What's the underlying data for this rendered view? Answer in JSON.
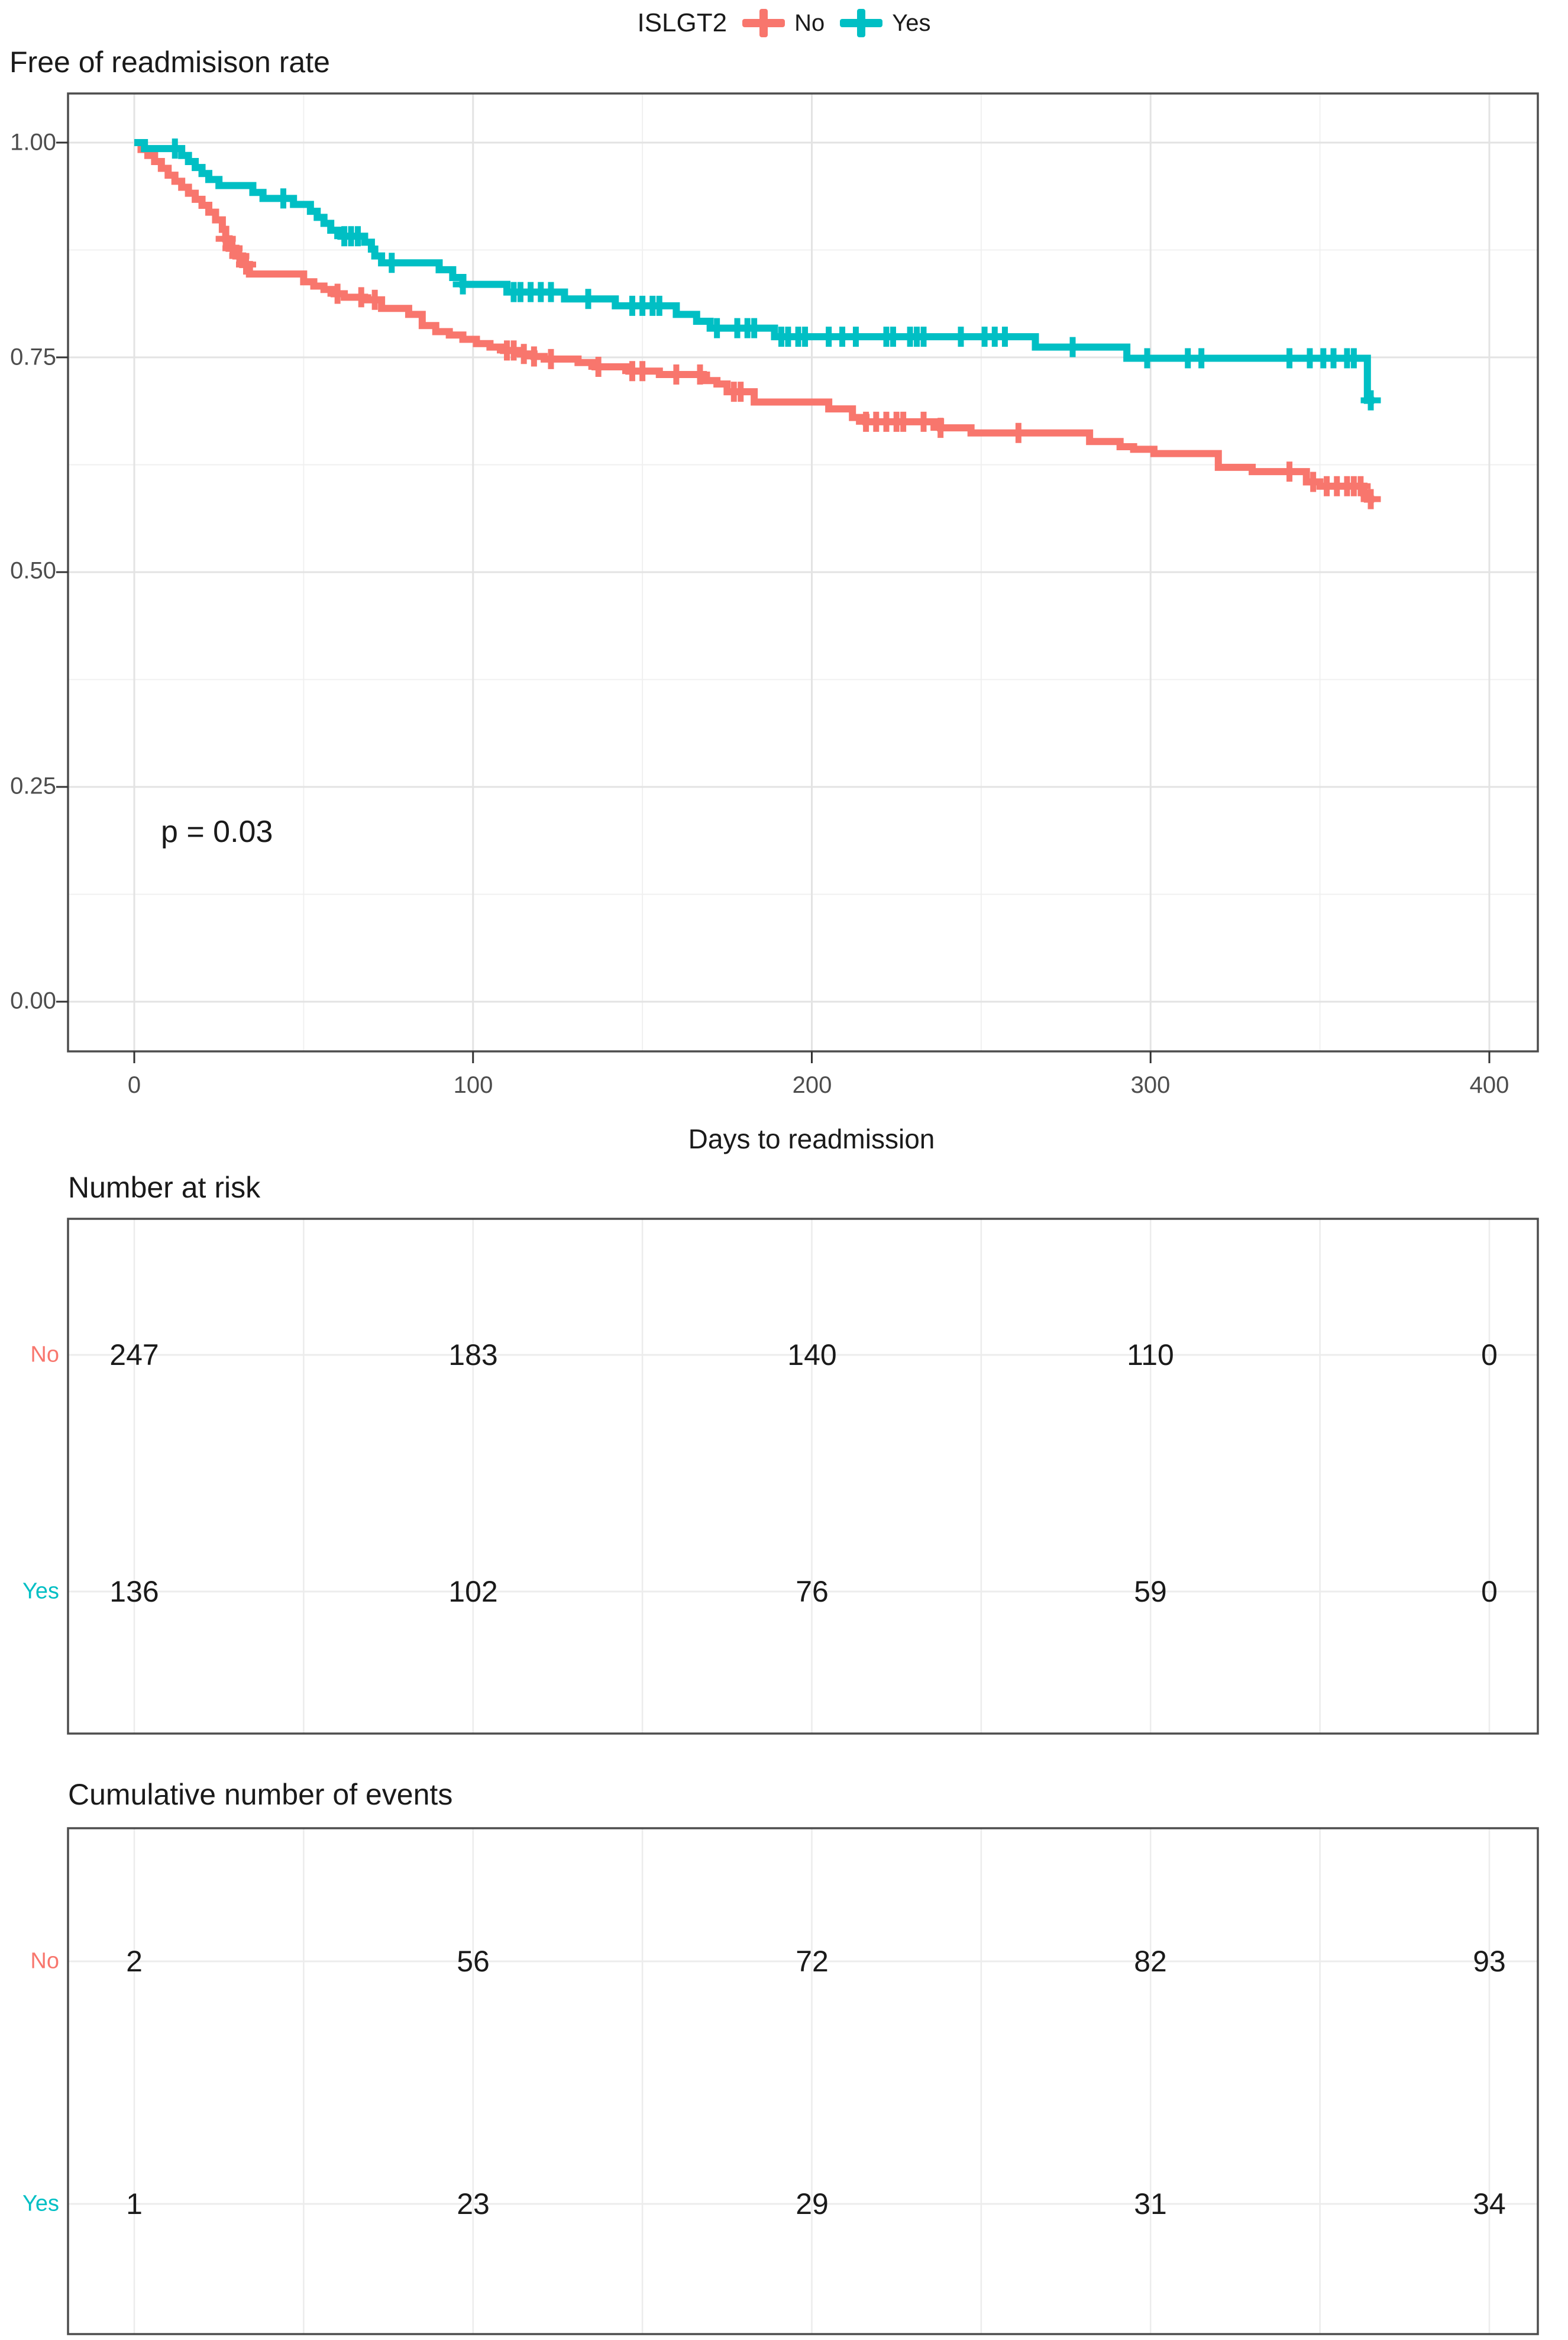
{
  "legend": {
    "title": "ISLGT2",
    "items": [
      {
        "label": "No",
        "color": "#F8766D"
      },
      {
        "label": "Yes",
        "color": "#00BFC4"
      }
    ]
  },
  "chart_data": {
    "type": "line",
    "subtype": "kaplan-meier-step",
    "title": "Free of readmisison rate",
    "xlabel": "Days to readmission",
    "ylabel": "",
    "annotation": "p = 0.03",
    "xlim": [
      -20,
      414
    ],
    "ylim": [
      0,
      1
    ],
    "grid": true,
    "legend_position": "top",
    "x_ticks": [
      0,
      100,
      200,
      300,
      400
    ],
    "x_tick_labels": [
      "0",
      "100",
      "200",
      "300",
      "400"
    ],
    "y_ticks": [
      1.0,
      0.75,
      0.5,
      0.25,
      0.0
    ],
    "y_tick_labels": [
      "1.00",
      "0.75",
      "0.50",
      "0.25",
      "0.00"
    ],
    "series": [
      {
        "name": "No",
        "color": "#F8766D",
        "end_day": 366,
        "points": [
          [
            0,
            1.0
          ],
          [
            2,
            0.992
          ],
          [
            4,
            0.985
          ],
          [
            6,
            0.978
          ],
          [
            8,
            0.97
          ],
          [
            10,
            0.962
          ],
          [
            12,
            0.955
          ],
          [
            14,
            0.948
          ],
          [
            16,
            0.941
          ],
          [
            18,
            0.934
          ],
          [
            20,
            0.927
          ],
          [
            22,
            0.919
          ],
          [
            24,
            0.91
          ],
          [
            26,
            0.899
          ],
          [
            27,
            0.888
          ],
          [
            28,
            0.877
          ],
          [
            30,
            0.868
          ],
          [
            32,
            0.858
          ],
          [
            34,
            0.847
          ],
          [
            50,
            0.838
          ],
          [
            53,
            0.833
          ],
          [
            56,
            0.829
          ],
          [
            59,
            0.824
          ],
          [
            62,
            0.82
          ],
          [
            68,
            0.817
          ],
          [
            73,
            0.807
          ],
          [
            81,
            0.8
          ],
          [
            85,
            0.787
          ],
          [
            89,
            0.78
          ],
          [
            93,
            0.776
          ],
          [
            97,
            0.771
          ],
          [
            101,
            0.766
          ],
          [
            105,
            0.762
          ],
          [
            109,
            0.758
          ],
          [
            114,
            0.754
          ],
          [
            118,
            0.751
          ],
          [
            121,
            0.748
          ],
          [
            131,
            0.744
          ],
          [
            136,
            0.739
          ],
          [
            146,
            0.734
          ],
          [
            155,
            0.73
          ],
          [
            168,
            0.723
          ],
          [
            172,
            0.719
          ],
          [
            175,
            0.71
          ],
          [
            183,
            0.698
          ],
          [
            205,
            0.69
          ],
          [
            212,
            0.68
          ],
          [
            216,
            0.675
          ],
          [
            238,
            0.668
          ],
          [
            247,
            0.662
          ],
          [
            282,
            0.652
          ],
          [
            291,
            0.646
          ],
          [
            295,
            0.643
          ],
          [
            301,
            0.638
          ],
          [
            320,
            0.622
          ],
          [
            330,
            0.617
          ],
          [
            346,
            0.605
          ],
          [
            350,
            0.6
          ],
          [
            363,
            0.592
          ],
          [
            364,
            0.585
          ]
        ],
        "censor_days": [
          27,
          29,
          31,
          33,
          60,
          67,
          71,
          110,
          112,
          115,
          118,
          123,
          137,
          147,
          150,
          160,
          167,
          177,
          179,
          216,
          219,
          222,
          225,
          227,
          233,
          238,
          261,
          341,
          348,
          352,
          355,
          358,
          360,
          362,
          365
        ]
      },
      {
        "name": "Yes",
        "color": "#00BFC4",
        "end_day": 366,
        "points": [
          [
            0,
            1.0
          ],
          [
            3,
            0.993
          ],
          [
            14,
            0.985
          ],
          [
            16,
            0.978
          ],
          [
            18,
            0.971
          ],
          [
            20,
            0.964
          ],
          [
            22,
            0.957
          ],
          [
            25,
            0.95
          ],
          [
            35,
            0.942
          ],
          [
            38,
            0.935
          ],
          [
            47,
            0.928
          ],
          [
            52,
            0.92
          ],
          [
            54,
            0.913
          ],
          [
            56,
            0.906
          ],
          [
            58,
            0.898
          ],
          [
            61,
            0.891
          ],
          [
            68,
            0.884
          ],
          [
            70,
            0.876
          ],
          [
            71,
            0.868
          ],
          [
            73,
            0.86
          ],
          [
            90,
            0.852
          ],
          [
            94,
            0.843
          ],
          [
            97,
            0.835
          ],
          [
            110,
            0.826
          ],
          [
            127,
            0.818
          ],
          [
            142,
            0.81
          ],
          [
            160,
            0.8
          ],
          [
            166,
            0.792
          ],
          [
            170,
            0.784
          ],
          [
            189,
            0.774
          ],
          [
            266,
            0.762
          ],
          [
            293,
            0.749
          ],
          [
            364,
            0.7
          ]
        ],
        "censor_days": [
          12,
          44,
          62,
          64,
          66,
          76,
          97,
          112,
          114,
          117,
          120,
          123,
          134,
          147,
          150,
          153,
          155,
          172,
          178,
          181,
          183,
          191,
          193,
          196,
          198,
          205,
          209,
          213,
          222,
          224,
          229,
          231,
          233,
          244,
          251,
          254,
          257,
          277,
          299,
          311,
          315,
          341,
          347,
          351,
          354,
          358,
          360,
          365
        ]
      }
    ]
  },
  "risk_table": {
    "title": "Number at risk",
    "time_points": [
      0,
      100,
      200,
      300,
      400
    ],
    "rows": [
      {
        "label": "No",
        "color": "#F8766D",
        "values": [
          "247",
          "183",
          "140",
          "110",
          "0"
        ]
      },
      {
        "label": "Yes",
        "color": "#00BFC4",
        "values": [
          "136",
          "102",
          "76",
          "59",
          "0"
        ]
      }
    ]
  },
  "events_table": {
    "title": "Cumulative number of events",
    "time_points": [
      0,
      100,
      200,
      300,
      400
    ],
    "rows": [
      {
        "label": "No",
        "color": "#F8766D",
        "values": [
          "2",
          "56",
          "72",
          "82",
          "93"
        ]
      },
      {
        "label": "Yes",
        "color": "#00BFC4",
        "values": [
          "1",
          "23",
          "29",
          "31",
          "34"
        ]
      }
    ]
  },
  "colors": {
    "no": "#F8766D",
    "yes": "#00BFC4",
    "grid_major": "#E3E3E3",
    "grid_minor": "#F0F0F0",
    "panel_border": "#4D4D4D",
    "tick_text": "#4D4D4D"
  }
}
